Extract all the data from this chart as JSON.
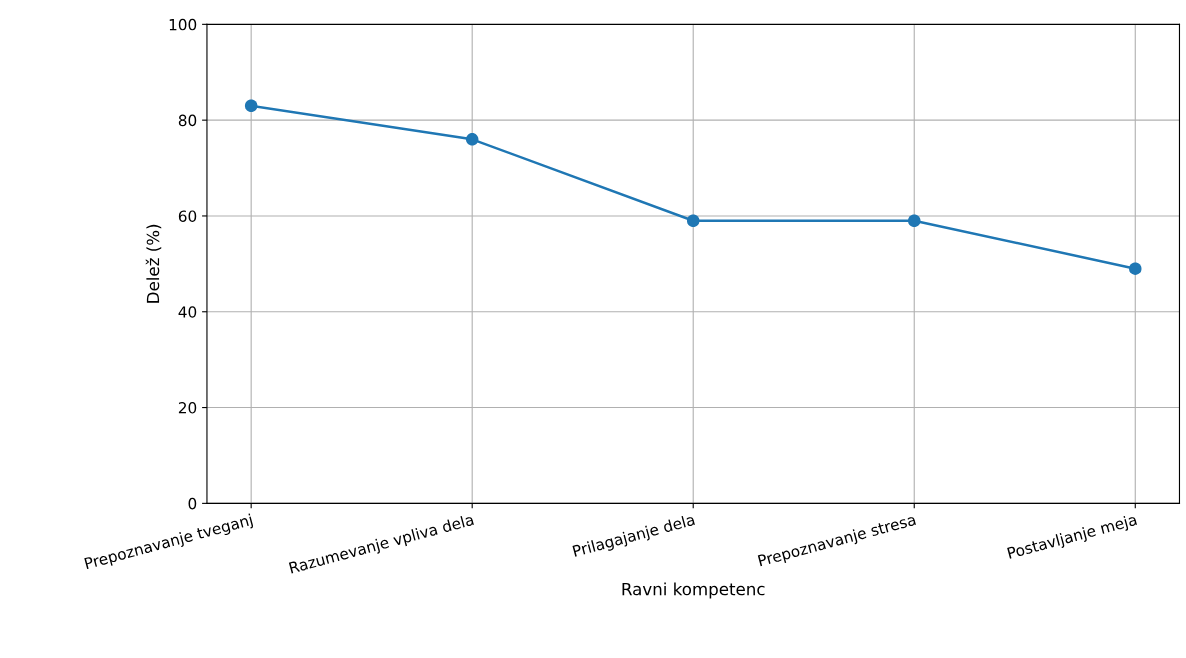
{
  "chart_data": {
    "type": "line",
    "xlabel": "Ravni kompetenc",
    "ylabel": "Delež (%)",
    "categories": [
      "Prepoznavanje tveganj",
      "Razumevanje vpliva dela",
      "Prilagajanje dela",
      "Prepoznavanje stresa",
      "Postavljanje meja"
    ],
    "series": [
      {
        "color": "#1f77b4",
        "values": [
          83,
          76,
          59,
          59,
          49
        ]
      }
    ],
    "ylim": [
      0,
      100
    ],
    "yticks": [
      0,
      20,
      40,
      60,
      80,
      100
    ],
    "grid": true,
    "marker": "circle",
    "line_style": "solid"
  }
}
